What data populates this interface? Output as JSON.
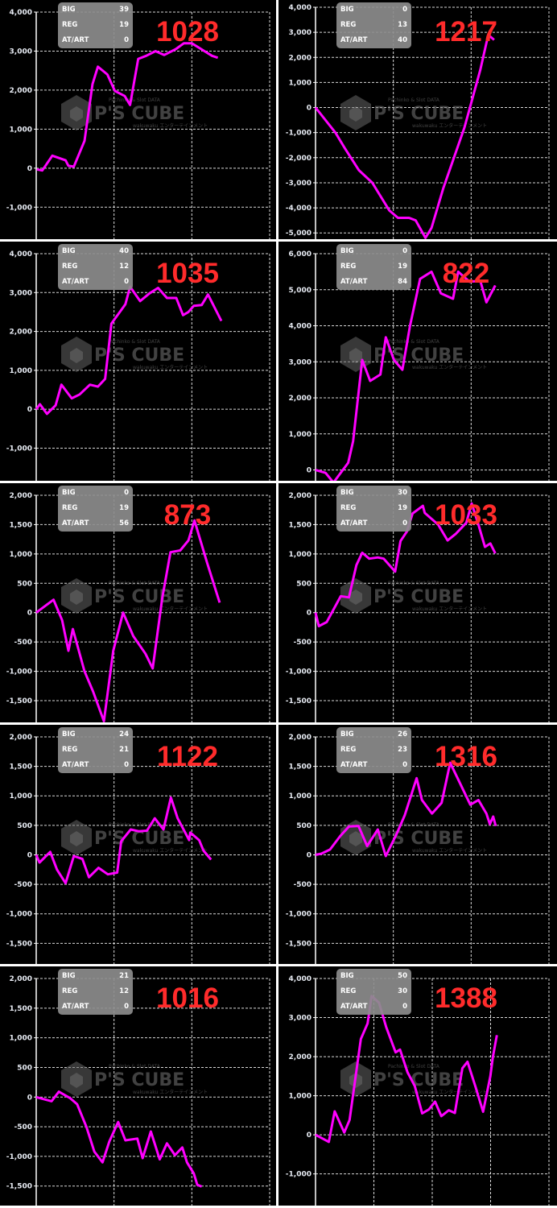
{
  "watermark": {
    "brand": "P'S CUBE",
    "top": "Pachinko & Slot DATA",
    "bottom": "wakuwaku エンターテインメント"
  },
  "colors": {
    "line": "#ff00ff",
    "number": "#ff2b2b",
    "grid": "#ffffff",
    "background": "#000000",
    "info_box": "#8c8c8c"
  },
  "chart_data": [
    {
      "type": "line",
      "machine_number": "1028",
      "info": {
        "BIG": "39",
        "REG": "19",
        "AT/ART": "0"
      },
      "ylim": [
        -1820,
        4000
      ],
      "yticks": [
        4000,
        3000,
        2000,
        1000,
        0,
        -1000
      ],
      "ytick_labels": [
        "4,000",
        "3,000",
        "2,000",
        "1,000",
        "0",
        "-1,000"
      ],
      "xlim": [
        0,
        100
      ],
      "x_grid_divisions": 3,
      "grid": true,
      "points": [
        [
          0.3,
          -30
        ],
        [
          2.6,
          -60
        ],
        [
          6.9,
          320
        ],
        [
          12.6,
          200
        ],
        [
          13.8,
          60
        ],
        [
          16.1,
          40
        ],
        [
          20.7,
          700
        ],
        [
          24.1,
          2150
        ],
        [
          26.4,
          2600
        ],
        [
          30.5,
          2400
        ],
        [
          33.7,
          1980
        ],
        [
          37.9,
          1850
        ],
        [
          40.2,
          1620
        ],
        [
          43.7,
          2800
        ],
        [
          47.1,
          2880
        ],
        [
          51.1,
          3000
        ],
        [
          54.8,
          2900
        ],
        [
          59.8,
          3050
        ],
        [
          63.2,
          3200
        ],
        [
          66.7,
          3200
        ],
        [
          70.7,
          3050
        ],
        [
          75.3,
          2880
        ],
        [
          77.8,
          2830
        ]
      ]
    },
    {
      "type": "line",
      "machine_number": "1217",
      "info": {
        "BIG": "0",
        "REG": "13",
        "AT/ART": "40"
      },
      "ylim": [
        -5250,
        4000
      ],
      "yticks": [
        4000,
        3000,
        2000,
        1000,
        0,
        -1000,
        -2000,
        -3000,
        -4000,
        -5000
      ],
      "ytick_labels": [
        "4,000",
        "3,000",
        "2,000",
        "1,000",
        "0",
        "-1,000",
        "-2,000",
        "-3,000",
        "-4,000",
        "-5,000"
      ],
      "xlim": [
        0,
        100
      ],
      "x_grid_divisions": 3,
      "grid": true,
      "points": [
        [
          0,
          0
        ],
        [
          8.5,
          -1000
        ],
        [
          12.4,
          -1600
        ],
        [
          18.6,
          -2500
        ],
        [
          24.3,
          -3000
        ],
        [
          31.6,
          -4100
        ],
        [
          35.3,
          -4400
        ],
        [
          40.1,
          -4400
        ],
        [
          42.9,
          -4500
        ],
        [
          47.1,
          -5200
        ],
        [
          49.7,
          -4800
        ],
        [
          54.8,
          -3200
        ],
        [
          63.8,
          -800
        ],
        [
          70.6,
          1500
        ],
        [
          74,
          2900
        ],
        [
          76.5,
          2700
        ]
      ]
    },
    {
      "type": "line",
      "machine_number": "1035",
      "info": {
        "BIG": "40",
        "REG": "12",
        "AT/ART": "0"
      },
      "ylim": [
        -1840,
        4000
      ],
      "yticks": [
        4000,
        3000,
        2000,
        1000,
        0,
        -1000
      ],
      "ytick_labels": [
        "4,000",
        "3,000",
        "2,000",
        "1,000",
        "0",
        "-1,000"
      ],
      "xlim": [
        0,
        100
      ],
      "x_grid_divisions": 3,
      "grid": true,
      "points": [
        [
          0,
          0
        ],
        [
          1.6,
          130
        ],
        [
          4.6,
          -120
        ],
        [
          8.3,
          100
        ],
        [
          10.8,
          630
        ],
        [
          15.2,
          280
        ],
        [
          18.6,
          380
        ],
        [
          23,
          630
        ],
        [
          26.4,
          580
        ],
        [
          29.5,
          780
        ],
        [
          32.2,
          2200
        ],
        [
          38.2,
          2700
        ],
        [
          40.2,
          3150
        ],
        [
          44.5,
          2780
        ],
        [
          48.5,
          2980
        ],
        [
          52.2,
          3120
        ],
        [
          56,
          2860
        ],
        [
          60,
          2860
        ],
        [
          62.9,
          2420
        ],
        [
          65.2,
          2500
        ],
        [
          67.5,
          2660
        ],
        [
          70.9,
          2680
        ],
        [
          73.6,
          2950
        ],
        [
          79.3,
          2270
        ]
      ]
    },
    {
      "type": "line",
      "machine_number": "822",
      "info": {
        "BIG": "0",
        "REG": "19",
        "AT/ART": "84"
      },
      "ylim": [
        -300,
        6000
      ],
      "yticks": [
        6000,
        5000,
        4000,
        3000,
        2000,
        1000,
        0
      ],
      "ytick_labels": [
        "6,000",
        "5,000",
        "4,000",
        "3,000",
        "2,000",
        "1,000",
        "0"
      ],
      "xlim": [
        0,
        100
      ],
      "x_grid_divisions": 3,
      "grid": true,
      "points": [
        [
          0,
          0
        ],
        [
          4.3,
          -80
        ],
        [
          7.7,
          -350
        ],
        [
          14,
          200
        ],
        [
          16.1,
          800
        ],
        [
          20,
          3050
        ],
        [
          23.4,
          2470
        ],
        [
          27.8,
          2650
        ],
        [
          30.1,
          3680
        ],
        [
          33.6,
          3050
        ],
        [
          37.2,
          2780
        ],
        [
          40.5,
          4000
        ],
        [
          44.8,
          5300
        ],
        [
          49.7,
          5500
        ],
        [
          53.7,
          4900
        ],
        [
          58.9,
          4750
        ],
        [
          61.1,
          5500
        ],
        [
          66,
          5220
        ],
        [
          70.6,
          5250
        ],
        [
          73.2,
          4650
        ],
        [
          77,
          5120
        ]
      ]
    },
    {
      "type": "line",
      "machine_number": "873",
      "info": {
        "BIG": "0",
        "REG": "19",
        "AT/ART": "56"
      },
      "ylim": [
        -1870,
        2000
      ],
      "yticks": [
        2000,
        1500,
        1000,
        500,
        0,
        -500,
        -1000,
        -1500
      ],
      "ytick_labels": [
        "2,000",
        "1,500",
        "1,000",
        "500",
        "0",
        "-500",
        "-1,000",
        "-1,500"
      ],
      "xlim": [
        0,
        100
      ],
      "x_grid_divisions": 3,
      "grid": true,
      "points": [
        [
          0,
          0
        ],
        [
          7.4,
          220
        ],
        [
          11.1,
          -130
        ],
        [
          13.8,
          -650
        ],
        [
          15.7,
          -280
        ],
        [
          20.7,
          -1000
        ],
        [
          24.4,
          -1350
        ],
        [
          29,
          -1850
        ],
        [
          33,
          -650
        ],
        [
          37.2,
          0
        ],
        [
          41.6,
          -400
        ],
        [
          46.8,
          -700
        ],
        [
          49.9,
          -950
        ],
        [
          54,
          250
        ],
        [
          57.5,
          1030
        ],
        [
          61.7,
          1060
        ],
        [
          65.2,
          1230
        ],
        [
          67.8,
          1570
        ],
        [
          73.2,
          850
        ],
        [
          78.6,
          170
        ]
      ]
    },
    {
      "type": "line",
      "machine_number": "1033",
      "info": {
        "BIG": "30",
        "REG": "19",
        "AT/ART": "0"
      },
      "ylim": [
        -1870,
        2000
      ],
      "yticks": [
        2000,
        1500,
        1000,
        500,
        0,
        -500,
        -1000,
        -1500
      ],
      "ytick_labels": [
        "2,000",
        "1,500",
        "1,000",
        "500",
        "0",
        "-500",
        "-1,000",
        "-1,500"
      ],
      "xlim": [
        0,
        100
      ],
      "x_grid_divisions": 3,
      "grid": true,
      "points": [
        [
          0,
          0
        ],
        [
          1.4,
          -230
        ],
        [
          4.8,
          -160
        ],
        [
          10.8,
          280
        ],
        [
          14.3,
          260
        ],
        [
          17.5,
          810
        ],
        [
          20,
          1020
        ],
        [
          23,
          920
        ],
        [
          26.7,
          940
        ],
        [
          29.2,
          920
        ],
        [
          34.1,
          700
        ],
        [
          36.4,
          1220
        ],
        [
          39.1,
          1380
        ],
        [
          41.6,
          1690
        ],
        [
          46,
          1820
        ],
        [
          46.8,
          1700
        ],
        [
          52.5,
          1500
        ],
        [
          56.6,
          1230
        ],
        [
          60,
          1340
        ],
        [
          64.6,
          1530
        ],
        [
          66.9,
          1860
        ],
        [
          69.8,
          1500
        ],
        [
          72.6,
          1120
        ],
        [
          74.9,
          1180
        ],
        [
          77,
          1010
        ]
      ]
    },
    {
      "type": "line",
      "machine_number": "1122",
      "info": {
        "BIG": "24",
        "REG": "21",
        "AT/ART": "0"
      },
      "ylim": [
        -1850,
        2000
      ],
      "yticks": [
        2000,
        1500,
        1000,
        500,
        0,
        -500,
        -1000,
        -1500
      ],
      "ytick_labels": [
        "2,000",
        "1,500",
        "1,000",
        "500",
        "0",
        "-500",
        "-1,000",
        "-1,500"
      ],
      "xlim": [
        0,
        100
      ],
      "x_grid_divisions": 3,
      "grid": true,
      "points": [
        [
          0,
          0
        ],
        [
          1.4,
          -130
        ],
        [
          6,
          50
        ],
        [
          8.9,
          -250
        ],
        [
          12.6,
          -480
        ],
        [
          16.1,
          -20
        ],
        [
          19.8,
          -70
        ],
        [
          22.6,
          -380
        ],
        [
          26.7,
          -220
        ],
        [
          30.7,
          -330
        ],
        [
          34.7,
          -300
        ],
        [
          36.4,
          230
        ],
        [
          40.5,
          430
        ],
        [
          43.9,
          400
        ],
        [
          47.4,
          410
        ],
        [
          50.8,
          620
        ],
        [
          54.5,
          430
        ],
        [
          57.7,
          970
        ],
        [
          60.6,
          620
        ],
        [
          65.5,
          250
        ],
        [
          66,
          380
        ],
        [
          69.8,
          250
        ],
        [
          71.7,
          70
        ],
        [
          74.9,
          -80
        ]
      ]
    },
    {
      "type": "line",
      "machine_number": "1316",
      "info": {
        "BIG": "26",
        "REG": "23",
        "AT/ART": "0"
      },
      "ylim": [
        -1850,
        2000
      ],
      "yticks": [
        2000,
        1500,
        1000,
        500,
        0,
        -500,
        -1000,
        -1500
      ],
      "ytick_labels": [
        "2,000",
        "1,500",
        "1,000",
        "500",
        "0",
        "-500",
        "-1,000",
        "-1,500"
      ],
      "xlim": [
        0,
        100
      ],
      "x_grid_divisions": 3,
      "grid": true,
      "points": [
        [
          0,
          0
        ],
        [
          2.5,
          20
        ],
        [
          6.2,
          90
        ],
        [
          10.6,
          320
        ],
        [
          14.3,
          480
        ],
        [
          18.4,
          490
        ],
        [
          22.1,
          150
        ],
        [
          26.7,
          430
        ],
        [
          30.1,
          -20
        ],
        [
          34.7,
          350
        ],
        [
          38.2,
          670
        ],
        [
          43.3,
          1300
        ],
        [
          45.6,
          930
        ],
        [
          49.9,
          700
        ],
        [
          54,
          880
        ],
        [
          57.7,
          1560
        ],
        [
          66.3,
          850
        ],
        [
          69.8,
          930
        ],
        [
          73.2,
          700
        ],
        [
          74.7,
          520
        ],
        [
          76.1,
          650
        ],
        [
          77.2,
          490
        ]
      ]
    },
    {
      "type": "line",
      "machine_number": "1016",
      "info": {
        "BIG": "21",
        "REG": "12",
        "AT/ART": "0"
      },
      "ylim": [
        -1830,
        2000
      ],
      "yticks": [
        2000,
        1500,
        1000,
        500,
        0,
        -500,
        -1000,
        -1500
      ],
      "ytick_labels": [
        "2,000",
        "1,500",
        "1,000",
        "500",
        "0",
        "-500",
        "-1,000",
        "-1,500"
      ],
      "xlim": [
        0,
        100
      ],
      "x_grid_divisions": 3,
      "grid": true,
      "points": [
        [
          0,
          0
        ],
        [
          6.6,
          -70
        ],
        [
          9.7,
          90
        ],
        [
          14.6,
          -20
        ],
        [
          17.5,
          -120
        ],
        [
          21.5,
          -500
        ],
        [
          24.9,
          -920
        ],
        [
          28.4,
          -1100
        ],
        [
          31.3,
          -750
        ],
        [
          35.1,
          -420
        ],
        [
          38.2,
          -730
        ],
        [
          43.3,
          -700
        ],
        [
          45.6,
          -1030
        ],
        [
          49.1,
          -580
        ],
        [
          52.9,
          -1050
        ],
        [
          56,
          -780
        ],
        [
          59.4,
          -980
        ],
        [
          62.6,
          -850
        ],
        [
          64.6,
          -1100
        ],
        [
          67.5,
          -1290
        ],
        [
          69,
          -1480
        ],
        [
          70.9,
          -1510
        ]
      ]
    },
    {
      "type": "line",
      "machine_number": "1388",
      "info": {
        "BIG": "50",
        "REG": "30",
        "AT/ART": "0"
      },
      "ylim": [
        -1810,
        4000
      ],
      "yticks": [
        4000,
        3000,
        2000,
        1000,
        0,
        -1000
      ],
      "ytick_labels": [
        "4,000",
        "3,000",
        "2,000",
        "1,000",
        "0",
        "-1,000"
      ],
      "xlim": [
        0,
        100
      ],
      "x_grid_divisions": 4,
      "grid": true,
      "points": [
        [
          0,
          0
        ],
        [
          5.7,
          -180
        ],
        [
          8.2,
          600
        ],
        [
          12.3,
          60
        ],
        [
          14.6,
          380
        ],
        [
          19.4,
          2450
        ],
        [
          22.3,
          2850
        ],
        [
          24,
          3550
        ],
        [
          27.2,
          3380
        ],
        [
          30.3,
          2750
        ],
        [
          34.3,
          2110
        ],
        [
          36.2,
          2180
        ],
        [
          39.4,
          1600
        ],
        [
          42.5,
          1250
        ],
        [
          45.7,
          550
        ],
        [
          48.6,
          650
        ],
        [
          51.2,
          850
        ],
        [
          53.9,
          480
        ],
        [
          57.1,
          630
        ],
        [
          59.7,
          560
        ],
        [
          62.9,
          1700
        ],
        [
          65.1,
          1870
        ],
        [
          68.6,
          1220
        ],
        [
          71.8,
          590
        ],
        [
          74.9,
          1500
        ],
        [
          76,
          2000
        ],
        [
          77.7,
          2550
        ]
      ]
    }
  ]
}
